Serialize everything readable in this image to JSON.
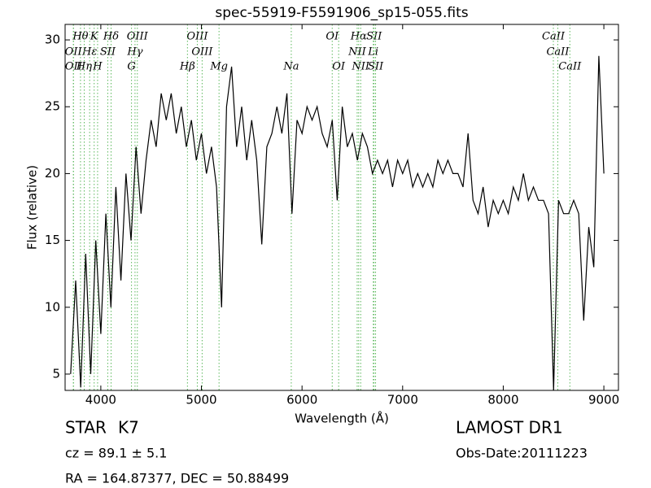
{
  "chart_data": {
    "type": "line",
    "title": "spec-55919-F5591906_sp15-055.fits",
    "xlabel": "Wavelength (Å)",
    "ylabel": "Flux (relative)",
    "xlim": [
      3645,
      9145
    ],
    "ylim": [
      3.78,
      31.16
    ],
    "xticks": [
      4000,
      5000,
      6000,
      7000,
      8000,
      9000
    ],
    "yticks": [
      5,
      10,
      15,
      20,
      25,
      30
    ],
    "color": "#000000",
    "x": [
      3700,
      3750,
      3800,
      3850,
      3900,
      3950,
      4000,
      4050,
      4100,
      4150,
      4200,
      4250,
      4300,
      4350,
      4400,
      4450,
      4500,
      4550,
      4600,
      4650,
      4700,
      4750,
      4800,
      4850,
      4900,
      4950,
      5000,
      5050,
      5100,
      5150,
      5200,
      5250,
      5300,
      5350,
      5400,
      5450,
      5500,
      5550,
      5600,
      5650,
      5700,
      5750,
      5800,
      5850,
      5900,
      5950,
      6000,
      6050,
      6100,
      6150,
      6200,
      6250,
      6300,
      6350,
      6400,
      6450,
      6500,
      6550,
      6600,
      6650,
      6700,
      6750,
      6800,
      6850,
      6900,
      6950,
      7000,
      7050,
      7100,
      7150,
      7200,
      7250,
      7300,
      7350,
      7400,
      7450,
      7500,
      7550,
      7600,
      7650,
      7700,
      7750,
      7800,
      7850,
      7900,
      7950,
      8000,
      8050,
      8100,
      8150,
      8200,
      8250,
      8300,
      8350,
      8400,
      8450,
      8500,
      8550,
      8600,
      8650,
      8700,
      8750,
      8800,
      8850,
      8900,
      8950,
      9000
    ],
    "values": [
      5,
      12,
      4,
      14,
      5,
      15,
      8,
      17,
      10,
      19,
      12,
      20,
      15,
      22,
      17,
      21,
      24,
      22,
      26,
      24,
      26,
      23,
      25,
      22,
      24,
      21,
      23,
      20,
      22,
      19,
      10,
      25,
      28,
      22,
      25,
      21,
      24,
      21,
      14.7,
      22,
      23,
      25,
      23,
      26,
      17,
      24,
      23,
      25,
      24,
      25,
      23,
      22,
      24,
      18,
      25,
      22,
      23,
      21,
      23,
      22,
      20,
      21,
      20,
      21,
      19,
      21,
      20,
      21,
      19,
      20,
      19,
      20,
      19,
      21,
      20,
      21,
      20,
      20,
      19,
      23,
      18,
      17,
      19,
      16,
      18,
      17,
      18,
      17,
      19,
      18,
      20,
      18,
      19,
      18,
      18,
      17,
      3.8,
      18,
      17,
      17,
      18,
      17,
      9,
      16,
      13,
      28.8,
      20
    ],
    "spectral_lines": [
      [
        {
          "label": "Hθ",
          "wavelength": 3798
        },
        {
          "label": "K",
          "wavelength": 3934
        },
        {
          "label": "Hδ",
          "wavelength": 4102
        },
        {
          "label": "OIII",
          "wavelength": 4363
        },
        {
          "label": "OIII",
          "wavelength": 4959
        },
        {
          "label": "OI",
          "wavelength": 6300
        },
        {
          "label": "Hα",
          "wavelength": 6563
        },
        {
          "label": "SII",
          "wavelength": 6716
        },
        {
          "label": "CaII",
          "wavelength": 8498
        }
      ],
      [
        {
          "label": "OII",
          "wavelength": 3727
        },
        {
          "label": "Hε",
          "wavelength": 3889
        },
        {
          "label": "SII",
          "wavelength": 4069
        },
        {
          "label": "Hγ",
          "wavelength": 4340
        },
        {
          "label": "OIII",
          "wavelength": 5007
        },
        {
          "label": "NII",
          "wavelength": 6548
        },
        {
          "label": "Li",
          "wavelength": 6708
        },
        {
          "label": "CaII",
          "wavelength": 8542
        }
      ],
      [
        {
          "label": "OII",
          "wavelength": 3729
        },
        {
          "label": "Hη",
          "wavelength": 3835
        },
        {
          "label": "H",
          "wavelength": 3968
        },
        {
          "label": "G",
          "wavelength": 4305
        },
        {
          "label": "Hβ",
          "wavelength": 4861
        },
        {
          "label": "Mg",
          "wavelength": 5175
        },
        {
          "label": "Na",
          "wavelength": 5893
        },
        {
          "label": "OI",
          "wavelength": 6364
        },
        {
          "label": "NII",
          "wavelength": 6583
        },
        {
          "label": "SII",
          "wavelength": 6731
        },
        {
          "label": "CaII",
          "wavelength": 8662
        }
      ]
    ]
  },
  "footer": {
    "object_class": "STAR",
    "subclass": "K7",
    "redshift": "cz = 89.1 ± 5.1",
    "coords": "RA = 164.87377, DEC = 50.88499",
    "survey": "LAMOST DR1",
    "obs_date": "Obs-Date:20111223"
  }
}
